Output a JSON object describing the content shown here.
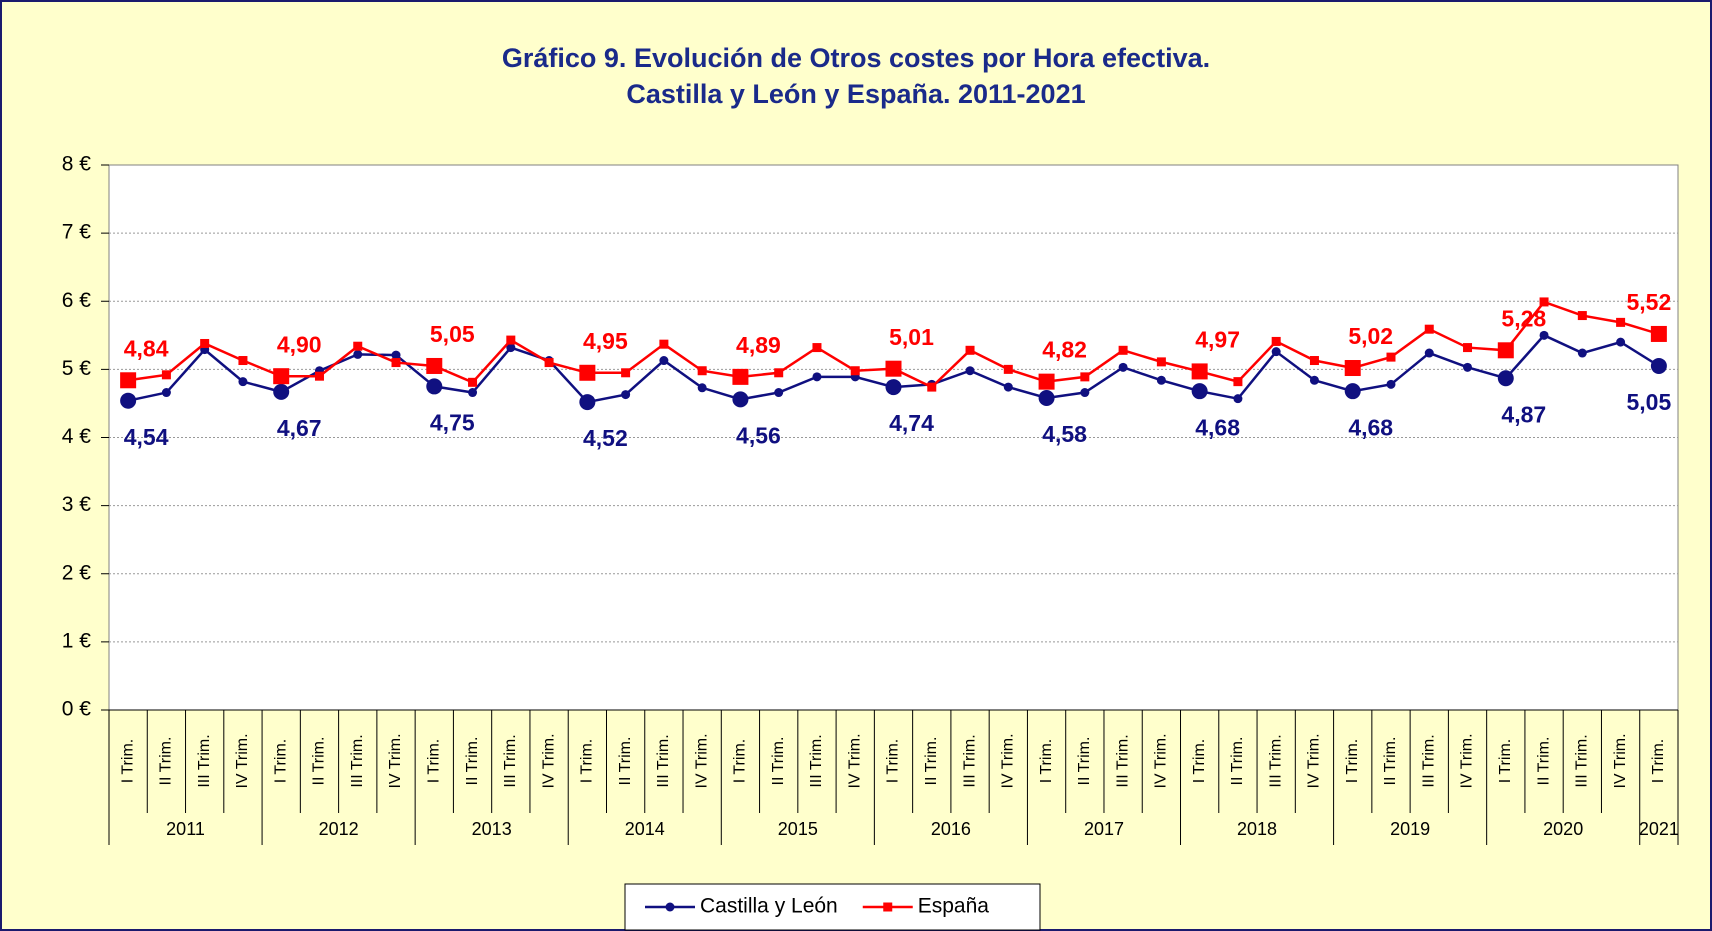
{
  "chart_data": {
    "type": "line",
    "title": "Gráfico 9. Evolución de Otros costes por Hora efectiva.",
    "subtitle": "Castilla y León y España. 2011-2021",
    "categories": [
      "I Trim.",
      "II Trim.",
      "III Trim.",
      "IV Trim.",
      "I Trim.",
      "II Trim.",
      "III Trim.",
      "IV Trim.",
      "I Trim.",
      "II Trim.",
      "III Trim.",
      "IV Trim.",
      "I Trim.",
      "II Trim.",
      "III Trim.",
      "IV Trim.",
      "I Trim.",
      "II Trim.",
      "III Trim.",
      "IV Trim.",
      "I Trim.",
      "II Trim.",
      "III Trim.",
      "IV Trim.",
      "I Trim.",
      "II Trim.",
      "III Trim.",
      "IV Trim.",
      "I Trim.",
      "II Trim.",
      "III Trim.",
      "IV Trim.",
      "I Trim.",
      "II Trim.",
      "III Trim.",
      "IV Trim.",
      "I Trim.",
      "II Trim.",
      "III Trim.",
      "IV Trim.",
      "I Trim."
    ],
    "years": [
      "2011",
      "2012",
      "2013",
      "2014",
      "2015",
      "2016",
      "2017",
      "2018",
      "2019",
      "2020",
      "2021"
    ],
    "series": [
      {
        "name": "Castilla y León",
        "color": "#101080",
        "values": [
          4.54,
          4.66,
          5.29,
          4.82,
          4.67,
          4.98,
          5.22,
          5.21,
          4.75,
          4.66,
          5.32,
          5.13,
          4.52,
          4.63,
          5.13,
          4.73,
          4.56,
          4.66,
          4.89,
          4.89,
          4.74,
          4.78,
          4.98,
          4.74,
          4.58,
          4.66,
          5.03,
          4.84,
          4.68,
          4.57,
          5.26,
          4.84,
          4.68,
          4.78,
          5.24,
          5.03,
          4.87,
          5.5,
          5.24,
          5.4,
          5.05
        ],
        "value_labels": [
          "4,54",
          null,
          null,
          null,
          "4,67",
          null,
          null,
          null,
          "4,75",
          null,
          null,
          null,
          "4,52",
          null,
          null,
          null,
          "4,56",
          null,
          null,
          null,
          "4,74",
          null,
          null,
          null,
          "4,58",
          null,
          null,
          null,
          "4,68",
          null,
          null,
          null,
          "4,68",
          null,
          null,
          null,
          "4,87",
          null,
          null,
          null,
          "5,05"
        ]
      },
      {
        "name": "España",
        "color": "#ff0000",
        "values": [
          4.84,
          4.92,
          5.38,
          5.13,
          4.9,
          4.9,
          5.34,
          5.1,
          5.05,
          4.81,
          5.43,
          5.1,
          4.95,
          4.95,
          5.37,
          4.98,
          4.89,
          4.95,
          5.32,
          4.98,
          5.01,
          4.74,
          5.28,
          5.0,
          4.82,
          4.89,
          5.28,
          5.11,
          4.97,
          4.82,
          5.41,
          5.13,
          5.02,
          5.18,
          5.59,
          5.32,
          5.28,
          5.99,
          5.79,
          5.69,
          5.52
        ],
        "value_labels": [
          "4,84",
          null,
          null,
          null,
          "4,90",
          null,
          null,
          null,
          "5,05",
          null,
          null,
          null,
          "4,95",
          null,
          null,
          null,
          "4,89",
          null,
          null,
          null,
          "5,01",
          null,
          null,
          null,
          "4,82",
          null,
          null,
          null,
          "4,97",
          null,
          null,
          null,
          "5,02",
          null,
          null,
          null,
          "5,28",
          null,
          null,
          null,
          "5,52"
        ]
      }
    ],
    "ylim": [
      0,
      8
    ],
    "yticks": [
      {
        "value": 0,
        "label": "0 €"
      },
      {
        "value": 1,
        "label": "1 €"
      },
      {
        "value": 2,
        "label": "2 €"
      },
      {
        "value": 3,
        "label": "3 €"
      },
      {
        "value": 4,
        "label": "4 €"
      },
      {
        "value": 5,
        "label": "5 €"
      },
      {
        "value": 6,
        "label": "6 €"
      },
      {
        "value": 7,
        "label": "7 €"
      },
      {
        "value": 8,
        "label": "8 €"
      }
    ],
    "grid": true,
    "legend": "bottom"
  }
}
